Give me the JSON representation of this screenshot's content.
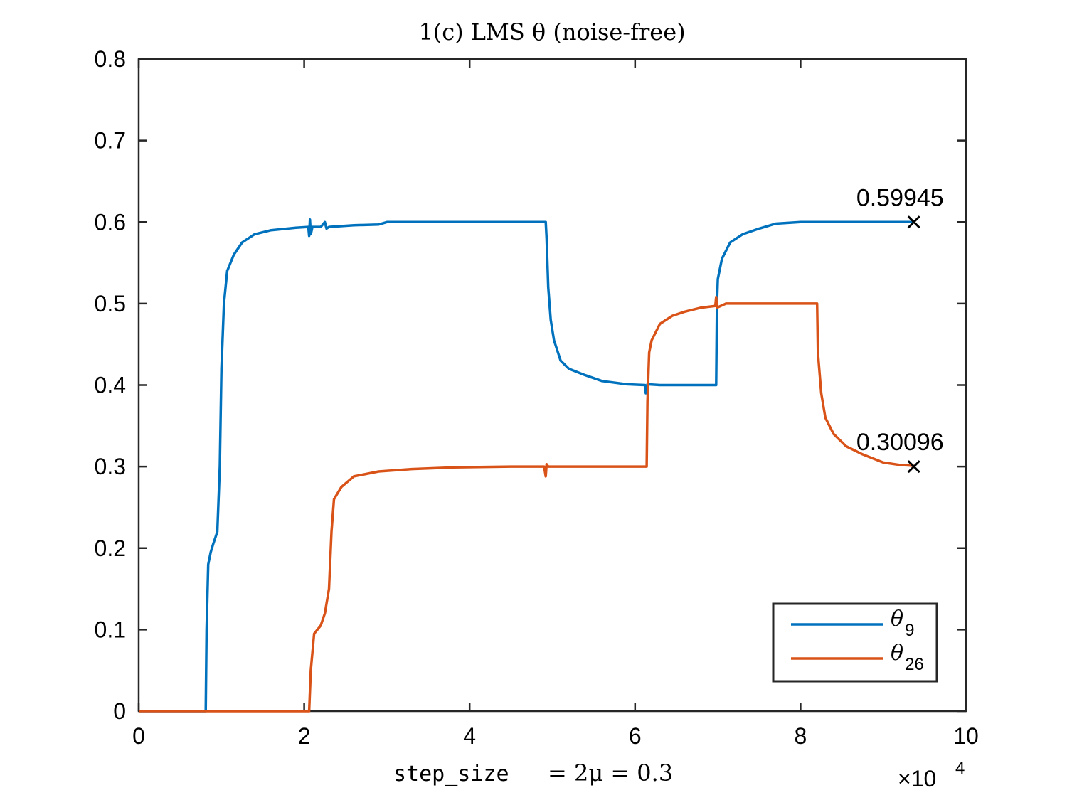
{
  "chart_data": {
    "type": "line",
    "title": "1(c) LMS θ (noise-free)",
    "xlabel_code": "step_size",
    "xlabel_math": "= 2μ = 0.3",
    "xlim": [
      0,
      10
    ],
    "ylim": [
      0,
      0.8
    ],
    "x_exponent_label": "×10",
    "x_exponent_power": "4",
    "x_ticks": [
      "0",
      "2",
      "4",
      "6",
      "8",
      "10"
    ],
    "y_ticks": [
      "0",
      "0.1",
      "0.2",
      "0.3",
      "0.4",
      "0.5",
      "0.6",
      "0.7",
      "0.8"
    ],
    "grid": false,
    "legend_position": "bottom-right",
    "series": [
      {
        "name": "θ",
        "subscript": "9",
        "color": "#0072BD",
        "points": [
          [
            0,
            0
          ],
          [
            0.8,
            0
          ],
          [
            0.81,
            0
          ],
          [
            0.82,
            0.1
          ],
          [
            0.84,
            0.18
          ],
          [
            0.87,
            0.195
          ],
          [
            0.9,
            0.205
          ],
          [
            0.95,
            0.22
          ],
          [
            0.98,
            0.3
          ],
          [
            1.0,
            0.42
          ],
          [
            1.03,
            0.5
          ],
          [
            1.07,
            0.54
          ],
          [
            1.15,
            0.56
          ],
          [
            1.25,
            0.575
          ],
          [
            1.4,
            0.585
          ],
          [
            1.6,
            0.59
          ],
          [
            1.9,
            0.593
          ],
          [
            2.05,
            0.594
          ],
          [
            2.06,
            0.583
          ],
          [
            2.07,
            0.603
          ],
          [
            2.08,
            0.585
          ],
          [
            2.1,
            0.594
          ],
          [
            2.2,
            0.594
          ],
          [
            2.25,
            0.6
          ],
          [
            2.27,
            0.592
          ],
          [
            2.3,
            0.594
          ],
          [
            2.6,
            0.596
          ],
          [
            2.9,
            0.597
          ],
          [
            3.0,
            0.6
          ],
          [
            3.5,
            0.6
          ],
          [
            4.0,
            0.6
          ],
          [
            4.5,
            0.6
          ],
          [
            4.92,
            0.6
          ],
          [
            4.93,
            0.58
          ],
          [
            4.95,
            0.52
          ],
          [
            4.98,
            0.48
          ],
          [
            5.02,
            0.455
          ],
          [
            5.1,
            0.43
          ],
          [
            5.2,
            0.42
          ],
          [
            5.4,
            0.412
          ],
          [
            5.6,
            0.405
          ],
          [
            5.9,
            0.401
          ],
          [
            6.12,
            0.4
          ],
          [
            6.13,
            0.39
          ],
          [
            6.15,
            0.401
          ],
          [
            6.3,
            0.4
          ],
          [
            6.5,
            0.4
          ],
          [
            6.98,
            0.4
          ],
          [
            6.99,
            0.5
          ],
          [
            7.0,
            0.53
          ],
          [
            7.05,
            0.555
          ],
          [
            7.15,
            0.575
          ],
          [
            7.3,
            0.585
          ],
          [
            7.5,
            0.592
          ],
          [
            7.7,
            0.598
          ],
          [
            8.0,
            0.6
          ],
          [
            8.5,
            0.6
          ],
          [
            9.0,
            0.6
          ],
          [
            9.37,
            0.6
          ]
        ]
      },
      {
        "name": "θ",
        "subscript": "26",
        "color": "#D95319",
        "points": [
          [
            0,
            0
          ],
          [
            2.05,
            0
          ],
          [
            2.06,
            0
          ],
          [
            2.08,
            0.05
          ],
          [
            2.12,
            0.095
          ],
          [
            2.2,
            0.105
          ],
          [
            2.25,
            0.12
          ],
          [
            2.3,
            0.15
          ],
          [
            2.33,
            0.22
          ],
          [
            2.36,
            0.26
          ],
          [
            2.45,
            0.275
          ],
          [
            2.6,
            0.288
          ],
          [
            2.9,
            0.294
          ],
          [
            3.3,
            0.297
          ],
          [
            3.8,
            0.299
          ],
          [
            4.5,
            0.3
          ],
          [
            4.9,
            0.3
          ],
          [
            4.92,
            0.288
          ],
          [
            4.93,
            0.303
          ],
          [
            4.95,
            0.3
          ],
          [
            5.5,
            0.3
          ],
          [
            6.14,
            0.3
          ],
          [
            6.15,
            0.38
          ],
          [
            6.17,
            0.44
          ],
          [
            6.2,
            0.455
          ],
          [
            6.3,
            0.475
          ],
          [
            6.45,
            0.485
          ],
          [
            6.6,
            0.49
          ],
          [
            6.8,
            0.495
          ],
          [
            6.97,
            0.497
          ],
          [
            6.98,
            0.508
          ],
          [
            6.99,
            0.495
          ],
          [
            7.1,
            0.5
          ],
          [
            7.5,
            0.5
          ],
          [
            8.0,
            0.5
          ],
          [
            8.2,
            0.5
          ],
          [
            8.21,
            0.44
          ],
          [
            8.25,
            0.39
          ],
          [
            8.3,
            0.36
          ],
          [
            8.4,
            0.34
          ],
          [
            8.55,
            0.325
          ],
          [
            8.75,
            0.315
          ],
          [
            9.0,
            0.305
          ],
          [
            9.2,
            0.302
          ],
          [
            9.37,
            0.301
          ]
        ]
      }
    ],
    "annotations": [
      {
        "x": 9.37,
        "y": 0.6,
        "text": "0.59945",
        "marker": "×"
      },
      {
        "x": 9.37,
        "y": 0.3,
        "text": "0.30096",
        "marker": "×"
      }
    ]
  }
}
